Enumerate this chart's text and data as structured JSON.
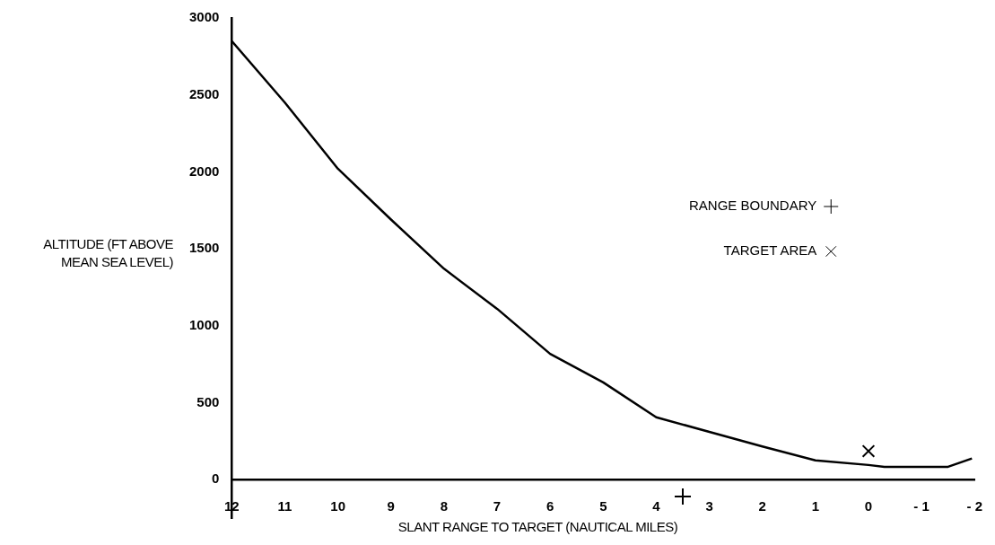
{
  "chart_data": {
    "type": "line",
    "xlabel": "SLANT RANGE TO TARGET (NAUTICAL MILES)",
    "ylabel": "ALTITUDE (FT ABOVE MEAN SEA LEVEL)",
    "xlim": [
      12,
      -2
    ],
    "xticks": [
      12,
      11,
      10,
      9,
      8,
      7,
      6,
      5,
      4,
      3,
      2,
      1,
      0,
      {
        "value": -1,
        "label": "- 1"
      },
      {
        "value": -2,
        "label": "- 2"
      }
    ],
    "ylim": [
      -250,
      3000
    ],
    "yticks": [
      0,
      500,
      1000,
      1500,
      2000,
      2500,
      3000
    ],
    "grid": false,
    "legend": "right",
    "line_style": "solid",
    "series": [
      {
        "color": "#000000",
        "marker": "none",
        "x": [
          12,
          11,
          10,
          9,
          8,
          7,
          6,
          5,
          4,
          3,
          2,
          1,
          0,
          -0.3,
          -1.5,
          -1.95
        ],
        "values": [
          2850,
          2450,
          2020,
          1690,
          1370,
          1110,
          817,
          632,
          405,
          310,
          215,
          125,
          95,
          83,
          83,
          137
        ]
      },
      {
        "type": "scatter",
        "name": "RANGE BOUNDARY",
        "color": "#000000",
        "marker": "cross",
        "x": [
          3.5
        ],
        "values": [
          -110
        ]
      },
      {
        "type": "scatter",
        "name": "TARGET AREA",
        "color": "#000000",
        "marker": "x",
        "x": [
          0
        ],
        "values": [
          185
        ]
      }
    ]
  }
}
